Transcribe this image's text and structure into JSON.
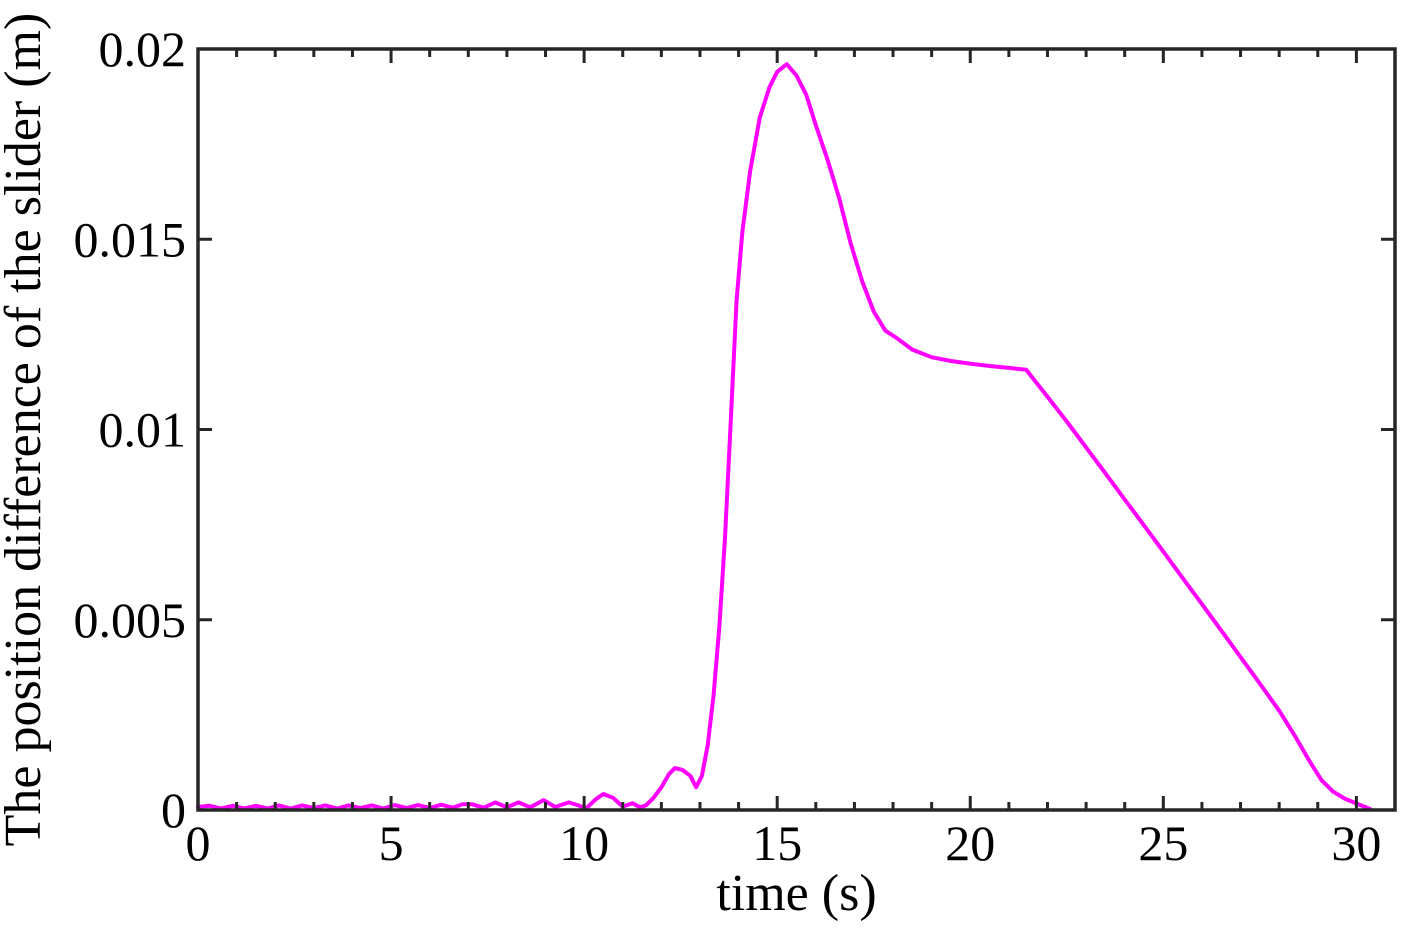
{
  "chart_data": {
    "type": "line",
    "title": "",
    "xlabel": "time (s)",
    "ylabel": "The position difference of the slider (m)",
    "xlim": [
      0,
      31
    ],
    "ylim": [
      0,
      0.02
    ],
    "xticks": [
      0,
      5,
      10,
      15,
      20,
      25,
      30
    ],
    "xtick_labels": [
      "0",
      "5",
      "10",
      "15",
      "20",
      "25",
      "30"
    ],
    "x_minor_tick_step": 1,
    "yticks": [
      0,
      0.005,
      0.01,
      0.015,
      0.02
    ],
    "ytick_labels": [
      "0",
      "0.005",
      "0.01",
      "0.015",
      "0.02"
    ],
    "grid": false,
    "legend": null,
    "box": true,
    "line_color": "#FF00FF",
    "line_width": 4,
    "axis_color": "#262626",
    "background": "#ffffff",
    "series": [
      {
        "name": "position-difference-of-slider",
        "points": [
          [
            0,
            8e-05
          ],
          [
            0.3,
            0.00011
          ],
          [
            0.6,
            4e-05
          ],
          [
            0.9,
            0.00011
          ],
          [
            1.2,
            4e-05
          ],
          [
            1.5,
            0.00011
          ],
          [
            1.8,
            4e-05
          ],
          [
            2.1,
            0.00012
          ],
          [
            2.4,
            4e-05
          ],
          [
            2.7,
            0.00012
          ],
          [
            3.0,
            5e-05
          ],
          [
            3.3,
            0.00012
          ],
          [
            3.6,
            4e-05
          ],
          [
            3.9,
            0.00012
          ],
          [
            4.2,
            5e-05
          ],
          [
            4.5,
            0.00012
          ],
          [
            4.8,
            4e-05
          ],
          [
            5.1,
            0.00013
          ],
          [
            5.4,
            5e-05
          ],
          [
            5.7,
            0.00013
          ],
          [
            6.0,
            5e-05
          ],
          [
            6.3,
            0.00014
          ],
          [
            6.6,
            6e-05
          ],
          [
            6.85,
            0.00015
          ],
          [
            7.1,
            0.00015
          ],
          [
            7.4,
            6e-05
          ],
          [
            7.7,
            0.0002
          ],
          [
            8.0,
            7e-05
          ],
          [
            8.3,
            0.0002
          ],
          [
            8.6,
            7e-05
          ],
          [
            8.95,
            0.00026
          ],
          [
            9.25,
            8e-05
          ],
          [
            9.6,
            0.0002
          ],
          [
            9.85,
            0.00012
          ],
          [
            10.05,
            4e-05
          ],
          [
            10.3,
            0.00028
          ],
          [
            10.5,
            0.00042
          ],
          [
            10.75,
            0.00032
          ],
          [
            11.0,
            9e-05
          ],
          [
            11.25,
            0.00018
          ],
          [
            11.45,
            7e-05
          ],
          [
            11.6,
            0.00012
          ],
          [
            11.8,
            0.00032
          ],
          [
            12.0,
            0.0006
          ],
          [
            12.2,
            0.00095
          ],
          [
            12.35,
            0.0011
          ],
          [
            12.55,
            0.00105
          ],
          [
            12.75,
            0.0009
          ],
          [
            12.9,
            0.0006
          ],
          [
            13.05,
            0.0009
          ],
          [
            13.2,
            0.0017
          ],
          [
            13.35,
            0.003
          ],
          [
            13.5,
            0.0048
          ],
          [
            13.65,
            0.0072
          ],
          [
            13.8,
            0.0103
          ],
          [
            13.95,
            0.0134
          ],
          [
            14.1,
            0.0152
          ],
          [
            14.3,
            0.0168
          ],
          [
            14.55,
            0.0182
          ],
          [
            14.8,
            0.019
          ],
          [
            15.0,
            0.0194
          ],
          [
            15.25,
            0.0196
          ],
          [
            15.5,
            0.0193
          ],
          [
            15.75,
            0.0188
          ],
          [
            16.0,
            0.018
          ],
          [
            16.3,
            0.0171
          ],
          [
            16.6,
            0.0161
          ],
          [
            16.9,
            0.0149
          ],
          [
            17.2,
            0.0139
          ],
          [
            17.5,
            0.0131
          ],
          [
            17.8,
            0.0126
          ],
          [
            18.1,
            0.0124
          ],
          [
            18.5,
            0.0121
          ],
          [
            19.0,
            0.0119
          ],
          [
            19.5,
            0.0118
          ],
          [
            20.0,
            0.01173
          ],
          [
            20.5,
            0.01167
          ],
          [
            21.0,
            0.01162
          ],
          [
            21.45,
            0.01157
          ],
          [
            22.0,
            0.01086
          ],
          [
            22.5,
            0.01021
          ],
          [
            23.0,
            0.00953
          ],
          [
            23.5,
            0.00885
          ],
          [
            24.0,
            0.00816
          ],
          [
            24.5,
            0.00748
          ],
          [
            25.0,
            0.00679
          ],
          [
            25.5,
            0.0061
          ],
          [
            26.0,
            0.00541
          ],
          [
            26.5,
            0.00472
          ],
          [
            27.0,
            0.00402
          ],
          [
            27.5,
            0.00332
          ],
          [
            28.0,
            0.00261
          ],
          [
            28.4,
            0.00196
          ],
          [
            28.8,
            0.00126
          ],
          [
            29.1,
            0.00078
          ],
          [
            29.4,
            0.00048
          ],
          [
            29.7,
            0.0003
          ],
          [
            30.0,
            0.00017
          ],
          [
            30.35,
            3e-05
          ]
        ]
      }
    ]
  }
}
